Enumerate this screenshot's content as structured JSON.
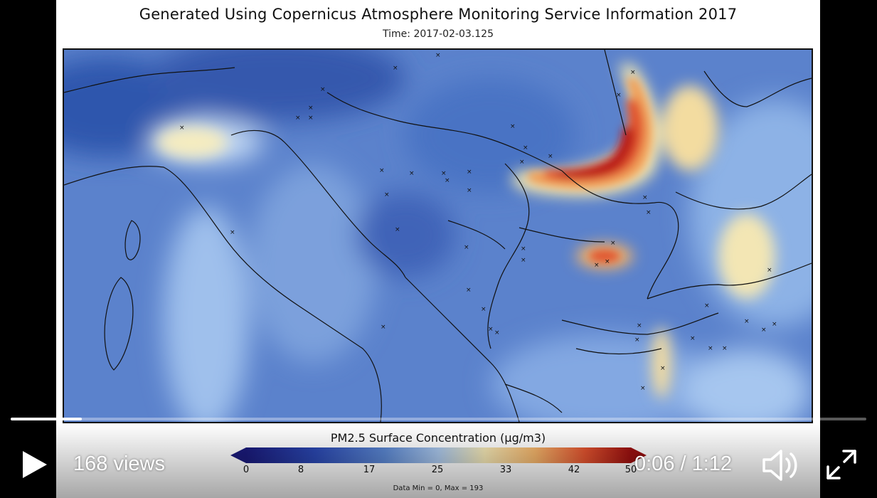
{
  "video": {
    "title": "Generated Using Copernicus Atmosphere Monitoring Service Information 2017",
    "subtitle": "Time: 2017-02-03.125",
    "colorbar": {
      "title": "PM2.5 Surface Concentration (µg/m3)",
      "ticks": [
        "0",
        "8",
        "17",
        "25",
        "33",
        "42",
        "50"
      ],
      "data_minmax": "Data Min = 0, Max = 193",
      "colors": [
        "#1a1a7a",
        "#2a47b0",
        "#5a86d0",
        "#a9c6ea",
        "#f3e6b4",
        "#f2b46a",
        "#e0532f",
        "#9a0f0f"
      ]
    },
    "map_colors": {
      "background": "#5b82cc",
      "sea_light": "#9fc0ec",
      "pollution_low": "#f5e9b0",
      "pollution_mid": "#f0a05a",
      "pollution_high": "#c81e1e"
    }
  },
  "controls": {
    "views": "168 views",
    "time": "0:06 / 1:12",
    "progress_fraction": 0.083,
    "icons": {
      "play": "play-icon",
      "volume": "volume-icon",
      "fullscreen": "fullscreen-icon"
    }
  }
}
